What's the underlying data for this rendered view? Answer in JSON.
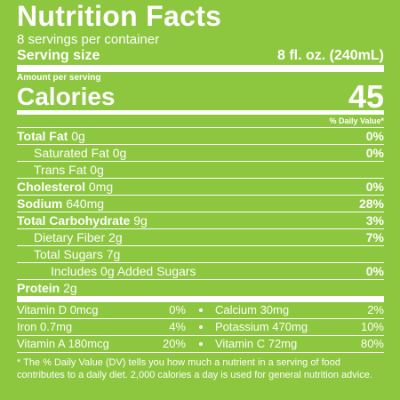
{
  "header": {
    "title": "Nutrition Facts",
    "servings": "8 servings per container",
    "serving_size_label": "Serving size",
    "serving_size": "8 fl. oz. (240mL)"
  },
  "calories": {
    "amount_label": "Amount per serving",
    "label": "Calories",
    "value": "45"
  },
  "daily_value_header": "% Daily Value*",
  "nutrients": [
    {
      "name": "Total Fat",
      "amount": "0g",
      "dv": "0%"
    },
    {
      "name": "Saturated Fat",
      "amount": "0g",
      "dv": "0%"
    },
    {
      "name": "Trans Fat",
      "amount": "0g"
    },
    {
      "name": "Cholesterol",
      "amount": "0mg",
      "dv": "0%"
    },
    {
      "name": "Sodium",
      "amount": "640mg",
      "dv": "28%"
    },
    {
      "name": "Total Carbohydrate",
      "amount": "9g",
      "dv": "3%"
    },
    {
      "name": "Dietary Fiber",
      "amount": "2g",
      "dv": "7%"
    },
    {
      "name": "Total Sugars",
      "amount": "7g"
    },
    {
      "name": "Includes 0g Added Sugars",
      "dv": "0%"
    },
    {
      "name": "Protein",
      "amount": "2g"
    }
  ],
  "vitamins": [
    [
      {
        "name": "Vitamin D 0mcg",
        "dv": "0%"
      },
      {
        "name": "Calcium 30mg",
        "dv": "2%"
      }
    ],
    [
      {
        "name": "Iron 0.7mg",
        "dv": "4%"
      },
      {
        "name": "Potassium 470mg",
        "dv": "10%"
      }
    ],
    [
      {
        "name": "Vitamin A 180mcg",
        "dv": "20%"
      },
      {
        "name": "Vitamin C 72mg",
        "dv": "80%"
      }
    ]
  ],
  "footnote": "* The % Daily Value (DV) tells you how much a nutrient in a serving of food contributes to a daily diet. 2,000 calories a day is used for general nutrition advice."
}
